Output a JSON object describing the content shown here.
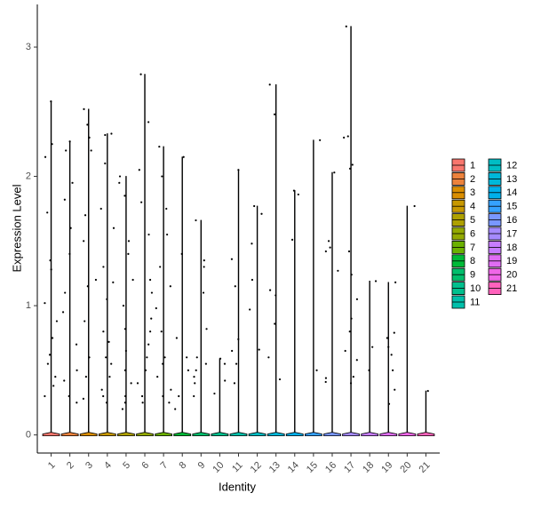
{
  "chart_data": {
    "type": "violin",
    "x_label": "Identity",
    "y_label": "Expression Level",
    "categories": [
      "1",
      "2",
      "3",
      "4",
      "5",
      "6",
      "7",
      "8",
      "9",
      "10",
      "11",
      "12",
      "13",
      "14",
      "15",
      "16",
      "17",
      "18",
      "19",
      "20",
      "21"
    ],
    "colors": [
      "#F8766D",
      "#EC823C",
      "#DB8E00",
      "#C79800",
      "#AFA100",
      "#93AA00",
      "#6BB100",
      "#00BA38",
      "#00BE6C",
      "#00C08E",
      "#00C0AB",
      "#00BDC4",
      "#00B8DA",
      "#00B0EB",
      "#35A2FF",
      "#7997FF",
      "#A58AFF",
      "#C77CFF",
      "#E06DF4",
      "#F066E8",
      "#FF62BC"
    ],
    "values": [
      2.58,
      2.27,
      2.52,
      2.33,
      2.0,
      2.79,
      2.23,
      2.15,
      1.66,
      0.59,
      2.05,
      1.77,
      2.71,
      1.89,
      2.28,
      2.03,
      3.16,
      1.19,
      1.18,
      1.77,
      0.34
    ],
    "points": [
      [
        2.58,
        2.25,
        2.15,
        1.72,
        1.35,
        1.28,
        1.02,
        0.88,
        0.75,
        0.62,
        0.55,
        0.45,
        0.38,
        0.3
      ],
      [
        2.27,
        2.2,
        1.95,
        1.82,
        1.6,
        1.4,
        1.1,
        0.95,
        0.7,
        0.5,
        0.42,
        0.3,
        0.25
      ],
      [
        2.52,
        2.4,
        2.3,
        2.2,
        1.7,
        1.5,
        1.2,
        1.15,
        0.88,
        0.6,
        0.45,
        0.28
      ],
      [
        2.33,
        2.32,
        2.1,
        1.75,
        1.6,
        1.3,
        1.18,
        1.05,
        0.8,
        0.72,
        0.6,
        0.55,
        0.45,
        0.35,
        0.3,
        0.25
      ],
      [
        2.0,
        1.95,
        1.85,
        1.5,
        1.4,
        1.2,
        1.0,
        0.82,
        0.65,
        0.5,
        0.4,
        0.3,
        0.25,
        0.2
      ],
      [
        2.79,
        2.42,
        2.05,
        1.8,
        1.55,
        1.2,
        1.1,
        0.9,
        0.8,
        0.7,
        0.6,
        0.5,
        0.4,
        0.3,
        0.25
      ],
      [
        2.23,
        2.0,
        1.75,
        1.55,
        1.3,
        1.15,
        0.98,
        0.8,
        0.6,
        0.55,
        0.45,
        0.35,
        0.3,
        0.25
      ],
      [
        2.15,
        1.4,
        0.75,
        0.6,
        0.5,
        0.3,
        0.2
      ],
      [
        1.66,
        1.35,
        1.3,
        1.1,
        0.82,
        0.6,
        0.55,
        0.5,
        0.45,
        0.4,
        0.3
      ],
      [
        0.59,
        0.55,
        0.42,
        0.32
      ],
      [
        2.05,
        1.36,
        1.15,
        0.74,
        0.65,
        0.55,
        0.4
      ],
      [
        1.77,
        1.71,
        1.48,
        1.2,
        0.97,
        0.66
      ],
      [
        2.71,
        2.48,
        1.12,
        1.08,
        0.86,
        0.6,
        0.43
      ],
      [
        1.89,
        1.86,
        1.51
      ],
      [
        2.28,
        0.5
      ],
      [
        2.03,
        1.5,
        1.45,
        1.42,
        1.27,
        0.44,
        0.41
      ],
      [
        3.16,
        2.31,
        2.3,
        2.09,
        2.06,
        1.42,
        1.24,
        1.05,
        0.9,
        0.8,
        0.65,
        0.58,
        0.45,
        0.4
      ],
      [
        1.19,
        0.68,
        0.5
      ],
      [
        1.18,
        0.79,
        0.75,
        0.68,
        0.62,
        0.5,
        0.35,
        0.24
      ],
      [
        1.77
      ],
      [
        0.34
      ]
    ],
    "ylim": [
      -0.14,
      3.33
    ],
    "yticks": [
      0,
      1,
      2,
      3
    ],
    "grid": false,
    "legend_position": "right"
  }
}
